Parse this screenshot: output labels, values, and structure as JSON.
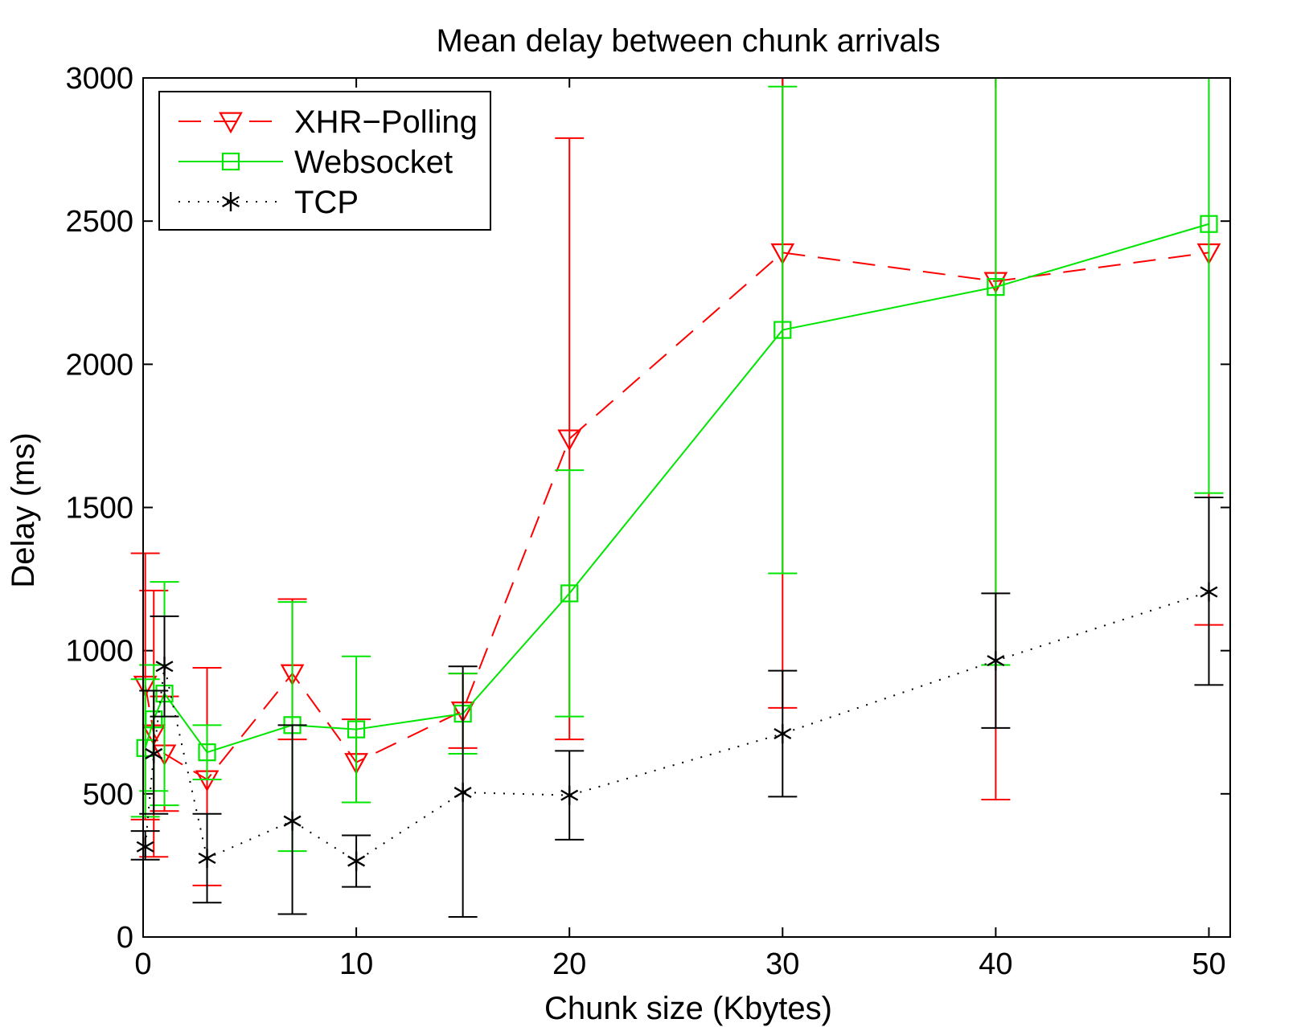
{
  "chart_data": {
    "type": "line",
    "title": "Mean delay between chunk arrivals",
    "xlabel": "Chunk size (Kbytes)",
    "ylabel": "Delay (ms)",
    "xlim": [
      0,
      51
    ],
    "ylim": [
      0,
      3000
    ],
    "xticks": [
      0,
      10,
      20,
      30,
      40,
      50
    ],
    "yticks": [
      0,
      500,
      1000,
      1500,
      2000,
      2500,
      3000
    ],
    "grid": false,
    "legend_position": "top-left",
    "series": [
      {
        "name": "XHR−Polling",
        "color": "#ff0000",
        "line_style": "dashed",
        "marker": "triangle-down",
        "points": [
          {
            "x": 0.1,
            "y": 880,
            "lo": 410,
            "hi": 1340
          },
          {
            "x": 0.5,
            "y": 710,
            "lo": 280,
            "hi": 1210
          },
          {
            "x": 1,
            "y": 640,
            "lo": 440,
            "hi": 840
          },
          {
            "x": 3,
            "y": 550,
            "lo": 180,
            "hi": 940
          },
          {
            "x": 7,
            "y": 920,
            "lo": 690,
            "hi": 1180
          },
          {
            "x": 10,
            "y": 610,
            "lo": 470,
            "hi": 760
          },
          {
            "x": 15,
            "y": 790,
            "lo": 660,
            "hi": 920
          },
          {
            "x": 20,
            "y": 1740,
            "lo": 690,
            "hi": 2790
          },
          {
            "x": 30,
            "y": 2390,
            "lo": 800,
            "hi": 3000
          },
          {
            "x": 40,
            "y": 2290,
            "lo": 480,
            "hi": 3000
          },
          {
            "x": 50,
            "y": 2390,
            "lo": 1090,
            "hi": 3000
          }
        ]
      },
      {
        "name": "Websocket",
        "color": "#00e600",
        "line_style": "solid",
        "marker": "square",
        "points": [
          {
            "x": 0.1,
            "y": 660,
            "lo": 420,
            "hi": 900
          },
          {
            "x": 0.5,
            "y": 760,
            "lo": 510,
            "hi": 950
          },
          {
            "x": 1,
            "y": 850,
            "lo": 460,
            "hi": 1240
          },
          {
            "x": 3,
            "y": 645,
            "lo": 550,
            "hi": 740
          },
          {
            "x": 7,
            "y": 740,
            "lo": 300,
            "hi": 1170
          },
          {
            "x": 10,
            "y": 725,
            "lo": 470,
            "hi": 980
          },
          {
            "x": 15,
            "y": 780,
            "lo": 640,
            "hi": 920
          },
          {
            "x": 20,
            "y": 1200,
            "lo": 770,
            "hi": 1630
          },
          {
            "x": 30,
            "y": 2120,
            "lo": 1270,
            "hi": 2970
          },
          {
            "x": 40,
            "y": 2270,
            "lo": 950,
            "hi": 3000
          },
          {
            "x": 50,
            "y": 2490,
            "lo": 1550,
            "hi": 3000
          }
        ]
      },
      {
        "name": "TCP",
        "color": "#000000",
        "line_style": "dotted",
        "marker": "asterisk",
        "points": [
          {
            "x": 0.1,
            "y": 315,
            "lo": 270,
            "hi": 370
          },
          {
            "x": 0.5,
            "y": 640,
            "lo": 430,
            "hi": 860
          },
          {
            "x": 1,
            "y": 945,
            "lo": 770,
            "hi": 1120
          },
          {
            "x": 3,
            "y": 275,
            "lo": 120,
            "hi": 430
          },
          {
            "x": 7,
            "y": 405,
            "lo": 80,
            "hi": 740
          },
          {
            "x": 10,
            "y": 265,
            "lo": 175,
            "hi": 355
          },
          {
            "x": 15,
            "y": 505,
            "lo": 70,
            "hi": 945
          },
          {
            "x": 20,
            "y": 495,
            "lo": 340,
            "hi": 650
          },
          {
            "x": 30,
            "y": 710,
            "lo": 490,
            "hi": 930
          },
          {
            "x": 40,
            "y": 965,
            "lo": 730,
            "hi": 1200
          },
          {
            "x": 50,
            "y": 1205,
            "lo": 880,
            "hi": 1535
          }
        ]
      }
    ]
  }
}
